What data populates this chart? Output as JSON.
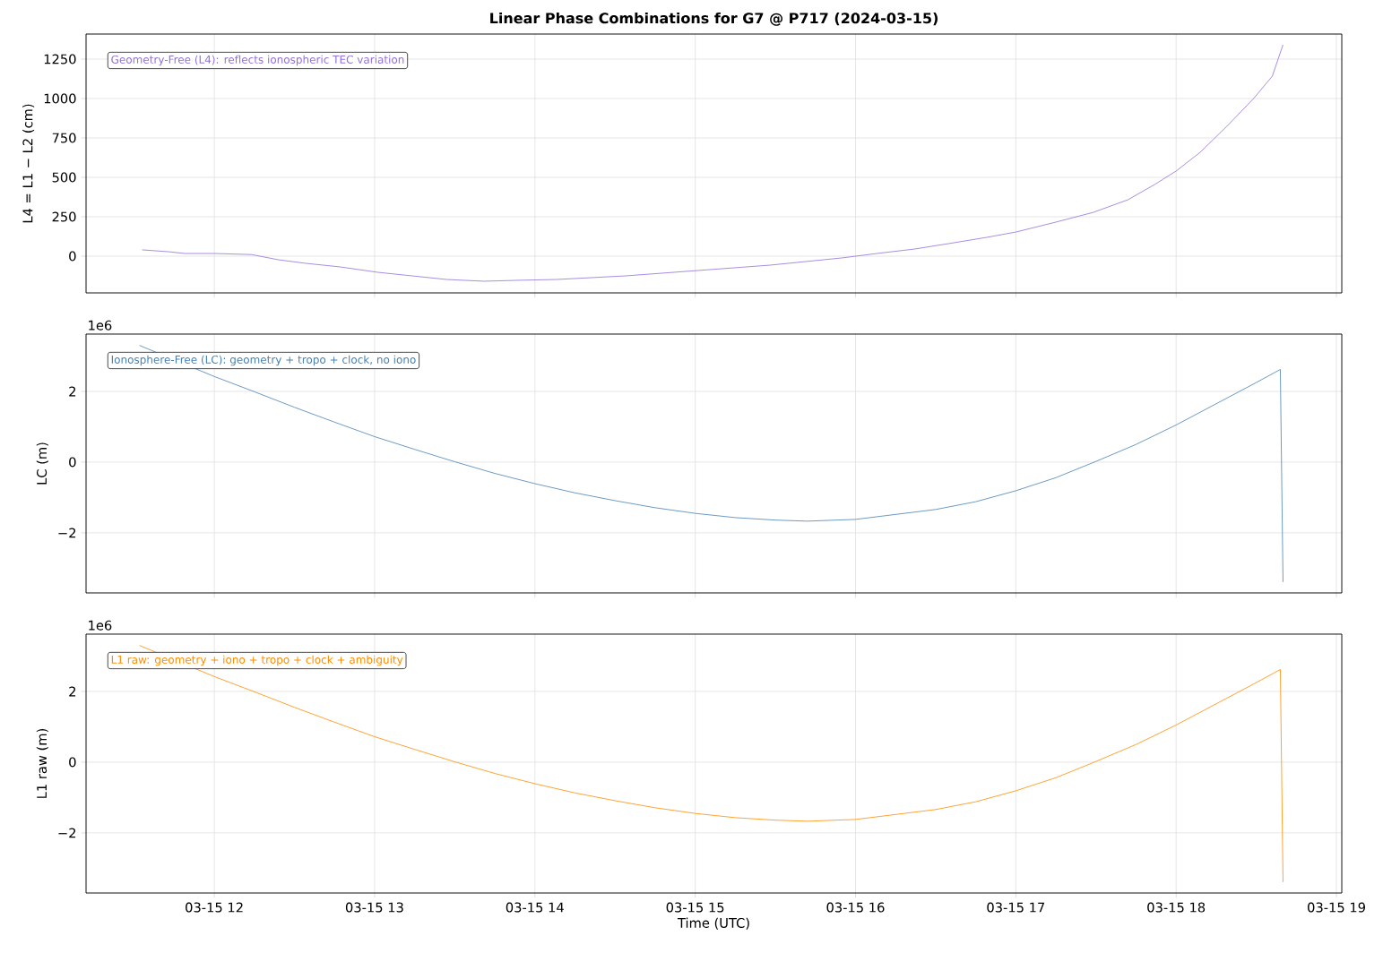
{
  "chart_data": [
    {
      "type": "line",
      "title": "**Linear Phase Combinations for G7 @ P717  (2024-03-15)**",
      "ylabel": "L4 = L1 − L2 (cm)",
      "grid": true,
      "tick_labels": "y",
      "annotations": [
        "Geometry-Free (L4): reflects ionospheric TEC variation"
      ],
      "x": [
        "2024-03-15T11:33",
        "2024-03-15T11:43",
        "2024-03-15T11:49",
        "2024-03-15T12:00",
        "2024-03-15T12:14",
        "2024-03-15T12:24",
        "2024-03-15T12:34",
        "2024-03-15T12:47",
        "2024-03-15T13:01",
        "2024-03-15T13:14",
        "2024-03-15T13:27",
        "2024-03-15T13:41",
        "2024-03-15T13:54",
        "2024-03-15T14:08",
        "2024-03-15T14:34",
        "2024-03-15T15:01",
        "2024-03-15T15:28",
        "2024-03-15T15:55",
        "2024-03-15T16:08",
        "2024-03-15T16:22",
        "2024-03-15T16:35",
        "2024-03-15T16:49",
        "2024-03-15T17:00",
        "2024-03-15T17:15",
        "2024-03-15T17:29",
        "2024-03-15T17:42",
        "2024-03-15T17:52",
        "2024-03-15T18:00",
        "2024-03-15T18:09",
        "2024-03-15T18:19",
        "2024-03-15T18:29",
        "2024-03-15T18:36",
        "2024-03-15T18:40"
      ],
      "series": [
        {
          "color": "#9370db",
          "values": [
            40,
            28,
            17,
            17,
            10,
            -23,
            -45,
            -68,
            -102,
            -125,
            -148,
            -159,
            -153,
            -148,
            -125,
            -91,
            -57,
            -11,
            17,
            45,
            80,
            119,
            153,
            216,
            278,
            358,
            455,
            540,
            659,
            824,
            1000,
            1142,
            1341
          ]
        }
      ],
      "xlim": [
        "2024-03-15T11:12",
        "2024-03-15T19:02"
      ],
      "ylim": [
        -233,
        1409
      ],
      "xticks": [
        {
          "value": "2024-03-15T12:00",
          "label": null
        },
        {
          "value": "2024-03-15T13:00",
          "label": null
        },
        {
          "value": "2024-03-15T14:00",
          "label": null
        },
        {
          "value": "2024-03-15T15:00",
          "label": null
        },
        {
          "value": "2024-03-15T16:00",
          "label": null
        },
        {
          "value": "2024-03-15T17:00",
          "label": null
        },
        {
          "value": "2024-03-15T18:00",
          "label": null
        },
        {
          "value": "2024-03-15T19:00",
          "label": null
        }
      ],
      "yticks": [
        0,
        250,
        500,
        750,
        1000,
        1250
      ]
    },
    {
      "type": "line",
      "ylabel": "LC (m)",
      "grid": true,
      "tick_labels": "y",
      "annotations": [
        "1e6",
        "Ionosphere-Free (LC): geometry + tropo + clock, no iono"
      ],
      "x": [
        "2024-03-15T11:32",
        "2024-03-15T12:00",
        "2024-03-15T12:15",
        "2024-03-15T12:30",
        "2024-03-15T12:45",
        "2024-03-15T13:00",
        "2024-03-15T13:15",
        "2024-03-15T13:30",
        "2024-03-15T13:45",
        "2024-03-15T14:00",
        "2024-03-15T14:15",
        "2024-03-15T14:30",
        "2024-03-15T14:45",
        "2024-03-15T15:00",
        "2024-03-15T15:15",
        "2024-03-15T15:30",
        "2024-03-15T15:42",
        "2024-03-15T16:00",
        "2024-03-15T16:30",
        "2024-03-15T16:45",
        "2024-03-15T17:00",
        "2024-03-15T17:15",
        "2024-03-15T17:30",
        "2024-03-15T17:45",
        "2024-03-15T18:00",
        "2024-03-15T18:15",
        "2024-03-15T18:30",
        "2024-03-15T18:39",
        "2024-03-15T18:40"
      ],
      "series": [
        {
          "color": "#4682b4",
          "values": [
            3.3,
            2.42,
            1.99,
            1.55,
            1.13,
            0.72,
            0.36,
            0.01,
            -0.32,
            -0.61,
            -0.87,
            -1.09,
            -1.29,
            -1.45,
            -1.57,
            -1.64,
            -1.67,
            -1.62,
            -1.34,
            -1.12,
            -0.81,
            -0.44,
            0.02,
            0.5,
            1.05,
            1.65,
            2.25,
            2.62,
            -3.39
          ]
        }
      ],
      "xlim": [
        "2024-03-15T11:12",
        "2024-03-15T19:02"
      ],
      "ylim": [
        -3.7,
        3.62
      ],
      "xticks": [
        {
          "value": "2024-03-15T12:00",
          "label": null
        },
        {
          "value": "2024-03-15T13:00",
          "label": null
        },
        {
          "value": "2024-03-15T14:00",
          "label": null
        },
        {
          "value": "2024-03-15T15:00",
          "label": null
        },
        {
          "value": "2024-03-15T16:00",
          "label": null
        },
        {
          "value": "2024-03-15T17:00",
          "label": null
        },
        {
          "value": "2024-03-15T18:00",
          "label": null
        },
        {
          "value": "2024-03-15T19:00",
          "label": null
        }
      ],
      "yticks": [
        {
          "value": -2,
          "label": "−2"
        },
        0,
        2
      ]
    },
    {
      "type": "line",
      "ylabel": "L1 raw (m)",
      "xlabel": "Time (UTC)",
      "grid": true,
      "annotations": [
        "1e6",
        "L1 raw: geometry + iono + tropo + clock + ambiguity"
      ],
      "x": [
        "2024-03-15T11:32",
        "2024-03-15T12:00",
        "2024-03-15T12:15",
        "2024-03-15T12:30",
        "2024-03-15T12:45",
        "2024-03-15T13:00",
        "2024-03-15T13:15",
        "2024-03-15T13:30",
        "2024-03-15T13:45",
        "2024-03-15T14:00",
        "2024-03-15T14:15",
        "2024-03-15T14:30",
        "2024-03-15T14:45",
        "2024-03-15T15:00",
        "2024-03-15T15:15",
        "2024-03-15T15:30",
        "2024-03-15T15:42",
        "2024-03-15T16:00",
        "2024-03-15T16:30",
        "2024-03-15T16:45",
        "2024-03-15T17:00",
        "2024-03-15T17:15",
        "2024-03-15T17:30",
        "2024-03-15T17:45",
        "2024-03-15T18:00",
        "2024-03-15T18:15",
        "2024-03-15T18:30",
        "2024-03-15T18:39",
        "2024-03-15T18:40"
      ],
      "series": [
        {
          "color": "#ff8c00",
          "values": [
            3.3,
            2.42,
            1.99,
            1.55,
            1.13,
            0.72,
            0.36,
            0.01,
            -0.32,
            -0.61,
            -0.87,
            -1.09,
            -1.29,
            -1.45,
            -1.57,
            -1.64,
            -1.67,
            -1.62,
            -1.34,
            -1.12,
            -0.81,
            -0.44,
            0.02,
            0.5,
            1.05,
            1.65,
            2.25,
            2.62,
            -3.39
          ]
        }
      ],
      "xlim": [
        "2024-03-15T11:12",
        "2024-03-15T19:02"
      ],
      "ylim": [
        -3.7,
        3.62
      ],
      "xticks": [
        {
          "value": "2024-03-15T12:00",
          "label": "03-15 12"
        },
        {
          "value": "2024-03-15T13:00",
          "label": "03-15 13"
        },
        {
          "value": "2024-03-15T14:00",
          "label": "03-15 14"
        },
        {
          "value": "2024-03-15T15:00",
          "label": "03-15 15"
        },
        {
          "value": "2024-03-15T16:00",
          "label": "03-15 16"
        },
        {
          "value": "2024-03-15T17:00",
          "label": "03-15 17"
        },
        {
          "value": "2024-03-15T18:00",
          "label": "03-15 18"
        },
        {
          "value": "2024-03-15T19:00",
          "label": "03-15 19"
        }
      ],
      "yticks": [
        {
          "value": -2,
          "label": "−2"
        },
        0,
        2
      ]
    }
  ]
}
